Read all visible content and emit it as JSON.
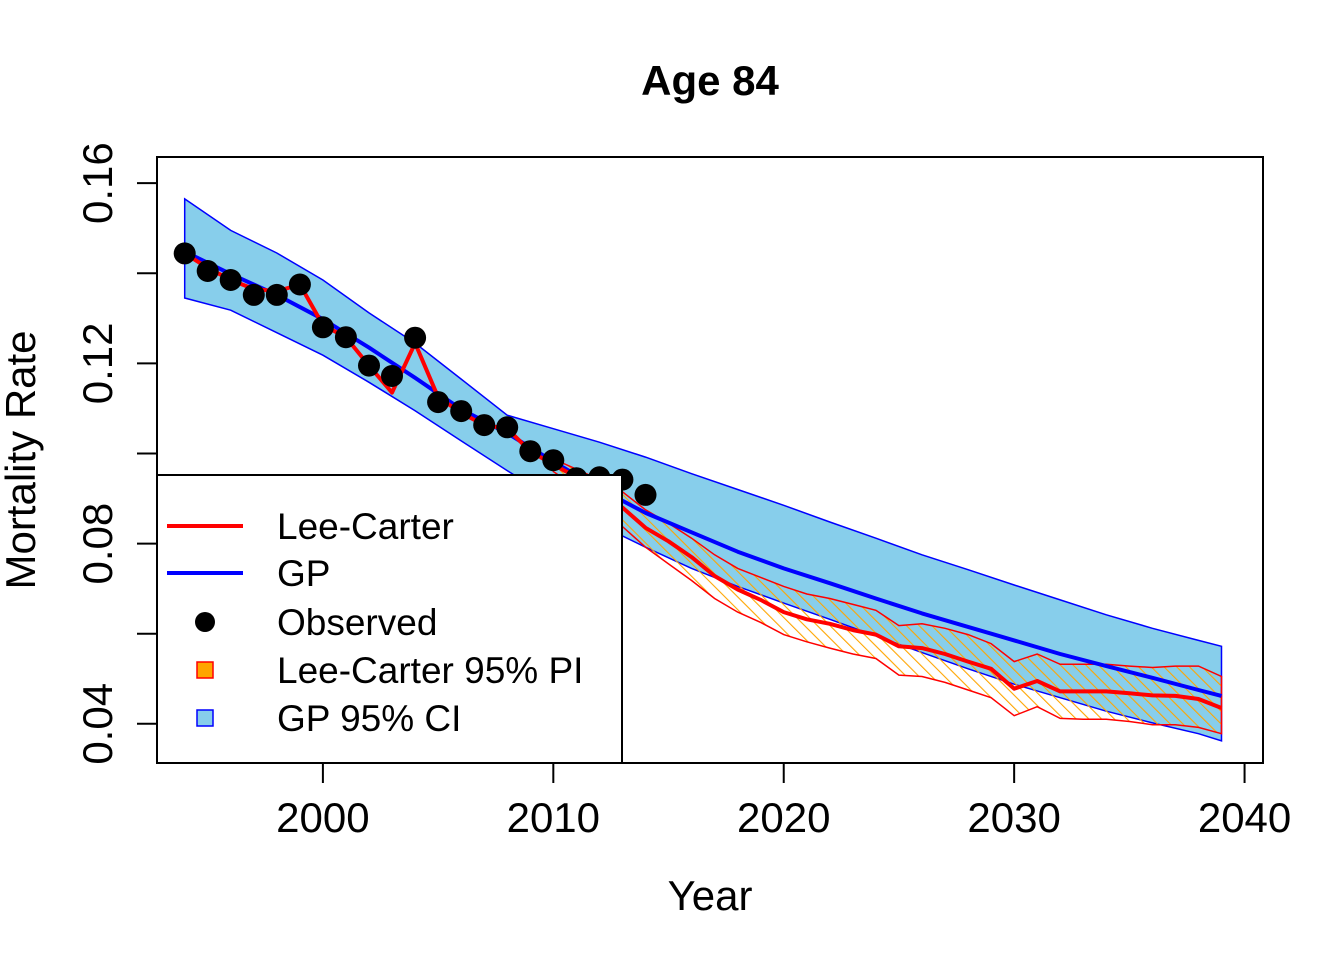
{
  "chart_data": {
    "type": "line",
    "title": "Age 84",
    "xlabel": "Year",
    "ylabel": "Mortality Rate",
    "xlim": [
      1992.8,
      2040.8
    ],
    "ylim": [
      0.0313,
      0.1658
    ],
    "x_ticks": [
      2000,
      2010,
      2020,
      2030,
      2040
    ],
    "y_ticks": [
      0.04,
      0.08,
      0.12,
      0.16
    ],
    "x_tick_labels": [
      "2000",
      "2010",
      "2020",
      "2030",
      "2040"
    ],
    "y_tick_labels": [
      "0.04",
      "0.08",
      "0.12",
      "0.16"
    ],
    "y_minor_ticks": [
      0.06,
      0.1,
      0.14
    ],
    "grid": false,
    "legend_position": "bottom-left",
    "legend": [
      {
        "label": "Lee-Carter",
        "symbol": "line",
        "color": "#ff0000"
      },
      {
        "label": "GP",
        "symbol": "line",
        "color": "#0000ff"
      },
      {
        "label": "Observed",
        "symbol": "point",
        "color": "#000000"
      },
      {
        "label": "Lee-Carter 95% PI",
        "symbol": "square",
        "color": "#ffa500",
        "border": "#ff0000"
      },
      {
        "label": "GP 95% CI",
        "symbol": "square",
        "color": "#87ceeb",
        "border": "#0000ff"
      }
    ],
    "series": [
      {
        "name": "Observed",
        "color": "#000000",
        "x": [
          1994,
          1995,
          1996,
          1997,
          1998,
          1999,
          2000,
          2001,
          2002,
          2003,
          2004,
          2005,
          2006,
          2007,
          2008,
          2009,
          2010,
          2011,
          2012,
          2013,
          2014
        ],
        "values": [
          0.1444,
          0.1405,
          0.1385,
          0.1352,
          0.1352,
          0.1375,
          0.128,
          0.1258,
          0.1195,
          0.1172,
          0.1257,
          0.1114,
          0.1094,
          0.1063,
          0.1058,
          0.1005,
          0.0985,
          0.0945,
          0.0947,
          0.0942,
          0.0908
        ]
      },
      {
        "name": "Lee-Carter",
        "color": "#ff0000",
        "x": [
          1994,
          1995,
          1996,
          1997,
          1998,
          1999,
          2000,
          2001,
          2002,
          2003,
          2004,
          2005,
          2006,
          2007,
          2008,
          2009,
          2010,
          2011,
          2012,
          2013,
          2014,
          2015,
          2016,
          2017,
          2018,
          2019,
          2020,
          2021,
          2022,
          2023,
          2024,
          2025,
          2026,
          2027,
          2028,
          2029,
          2030,
          2031,
          2032,
          2033,
          2034,
          2035,
          2036,
          2037,
          2038,
          2039
        ],
        "values": [
          0.1444,
          0.1412,
          0.1385,
          0.1365,
          0.136,
          0.1375,
          0.1285,
          0.1258,
          0.1195,
          0.1135,
          0.1245,
          0.1125,
          0.109,
          0.1063,
          0.1055,
          0.1005,
          0.0975,
          0.0948,
          0.0915,
          0.088,
          0.0835,
          0.0805,
          0.077,
          0.0728,
          0.0698,
          0.0675,
          0.0648,
          0.0632,
          0.0622,
          0.0608,
          0.0598,
          0.0572,
          0.0568,
          0.0555,
          0.0538,
          0.0522,
          0.0478,
          0.0495,
          0.0472,
          0.0472,
          0.0472,
          0.0468,
          0.0463,
          0.0462,
          0.0455,
          0.0435
        ]
      },
      {
        "name": "GP",
        "color": "#0000ff",
        "x": [
          1994,
          1996,
          1998,
          2000,
          2002,
          2004,
          2006,
          2008,
          2010,
          2012,
          2014,
          2016,
          2018,
          2020,
          2022,
          2024,
          2026,
          2028,
          2030,
          2032,
          2034,
          2036,
          2038,
          2039
        ],
        "values": [
          0.1448,
          0.1398,
          0.1352,
          0.1298,
          0.1235,
          0.1168,
          0.1098,
          0.1045,
          0.0982,
          0.0922,
          0.0868,
          0.0825,
          0.0782,
          0.0745,
          0.0712,
          0.0678,
          0.0645,
          0.0615,
          0.0585,
          0.0555,
          0.0528,
          0.0502,
          0.0475,
          0.0462
        ]
      }
    ],
    "intervals": [
      {
        "name": "GP 95% CI",
        "fill": "#87ceeb",
        "border": "#0000ff",
        "x": [
          1994,
          1996,
          1998,
          2000,
          2002,
          2004,
          2006,
          2008,
          2010,
          2012,
          2014,
          2016,
          2018,
          2020,
          2022,
          2024,
          2026,
          2028,
          2030,
          2032,
          2034,
          2036,
          2038,
          2039
        ],
        "lower": [
          0.1345,
          0.1318,
          0.1268,
          0.1218,
          0.1158,
          0.1095,
          0.1028,
          0.0962,
          0.0898,
          0.0842,
          0.0792,
          0.0745,
          0.0705,
          0.0668,
          0.0632,
          0.0595,
          0.0558,
          0.0522,
          0.0488,
          0.0458,
          0.0428,
          0.0402,
          0.0378,
          0.0362
        ],
        "upper": [
          0.1565,
          0.1495,
          0.1445,
          0.1385,
          0.1312,
          0.1245,
          0.1165,
          0.1085,
          0.1055,
          0.1025,
          0.0992,
          0.0955,
          0.092,
          0.0885,
          0.0848,
          0.0812,
          0.0775,
          0.0742,
          0.0708,
          0.0675,
          0.0642,
          0.0612,
          0.0585,
          0.0572
        ]
      },
      {
        "name": "Lee-Carter 95% PI",
        "fill": "#ffa500",
        "border": "#ff0000",
        "x": [
          2010,
          2011,
          2012,
          2013,
          2014,
          2015,
          2016,
          2017,
          2018,
          2019,
          2020,
          2021,
          2022,
          2023,
          2024,
          2025,
          2026,
          2027,
          2028,
          2029,
          2030,
          2031,
          2032,
          2033,
          2034,
          2035,
          2036,
          2037,
          2038,
          2039
        ],
        "lower": [
          0.096,
          0.0925,
          0.0885,
          0.0838,
          0.0792,
          0.0755,
          0.0718,
          0.0678,
          0.0648,
          0.0625,
          0.0598,
          0.0582,
          0.0568,
          0.0555,
          0.0545,
          0.0508,
          0.0505,
          0.0492,
          0.0475,
          0.0458,
          0.0418,
          0.0438,
          0.0412,
          0.041,
          0.041,
          0.0405,
          0.0398,
          0.0398,
          0.0392,
          0.0378
        ],
        "upper": [
          0.0988,
          0.0965,
          0.0942,
          0.0915,
          0.0875,
          0.0845,
          0.0812,
          0.0775,
          0.0745,
          0.0725,
          0.0705,
          0.0688,
          0.0678,
          0.0665,
          0.0652,
          0.0618,
          0.0622,
          0.0612,
          0.0598,
          0.0578,
          0.0538,
          0.0555,
          0.0532,
          0.0532,
          0.0532,
          0.0528,
          0.0525,
          0.0528,
          0.0528,
          0.0505
        ]
      }
    ]
  }
}
